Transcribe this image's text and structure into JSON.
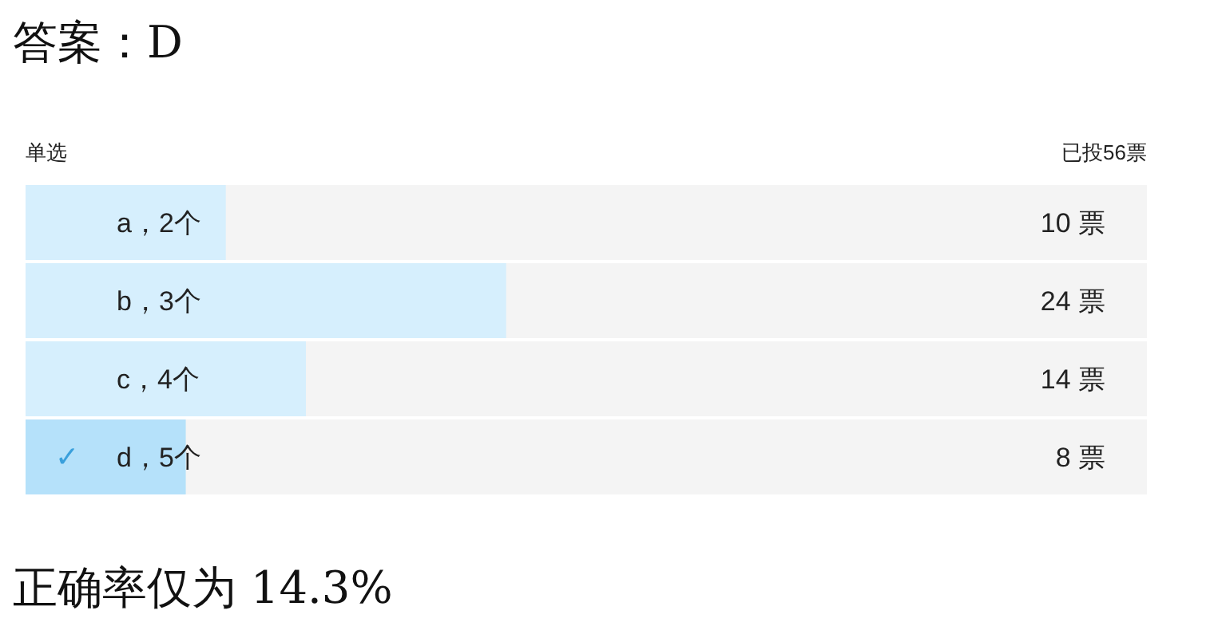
{
  "chart_data": {
    "type": "bar",
    "orientation": "horizontal",
    "title": "答案：D",
    "categories": [
      "a，2个",
      "b，3个",
      "c，4个",
      "d，5个"
    ],
    "values": [
      10,
      24,
      14,
      8
    ],
    "colors": [
      "#d6effd",
      "#d6effd",
      "#d6effd",
      "#b5e1fa"
    ],
    "xlim": [
      0,
      56
    ],
    "value_labels": [
      "10 票",
      "24 票",
      "14 票",
      "8 票"
    ],
    "annotations": [
      "单选",
      "已投56票",
      {
        "text": "✓",
        "y": "d，5个"
      },
      "正确率仅为 14.3%"
    ]
  }
}
